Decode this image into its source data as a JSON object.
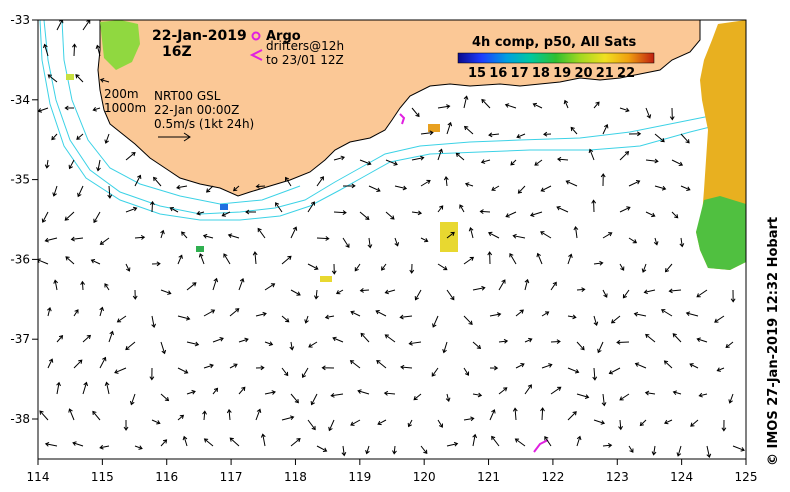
{
  "title": {
    "date": "22-Jan-2019",
    "time": "16Z"
  },
  "legend": {
    "argo_label": "Argo",
    "drifters_line1": "drifters@12h",
    "drifters_line2": "to 23/01 12Z",
    "colorbar_title": "4h comp, p50, All Sats",
    "colorbar_ticks": [
      "15",
      "16",
      "17",
      "18",
      "19",
      "20",
      "21",
      "22"
    ],
    "colorbar_colors": [
      "#0a0a8c",
      "#1e3cff",
      "#00a0e0",
      "#00c8a0",
      "#30c030",
      "#a0d820",
      "#f0e020",
      "#f0a010",
      "#e06010",
      "#c02010"
    ]
  },
  "annotations": {
    "isobath_200": "200m",
    "isobath_1000": "1000m",
    "product": "NRT00 GSL",
    "product_time": "22-Jan 00:00Z",
    "vector_scale": "0.5m/s (1kt 24h)"
  },
  "axes": {
    "x_ticks": [
      "114",
      "115",
      "116",
      "117",
      "118",
      "119",
      "120",
      "121",
      "122",
      "123",
      "124",
      "125"
    ],
    "y_ticks": [
      "-33",
      "-34",
      "-35",
      "-36",
      "-37",
      "-38"
    ]
  },
  "credit": "© IMOS 27-Jan-2019 12:32 Hobart",
  "colors": {
    "land": "#fbc896",
    "isobath": "#3cd2e6",
    "argo": "#e020e0"
  }
}
